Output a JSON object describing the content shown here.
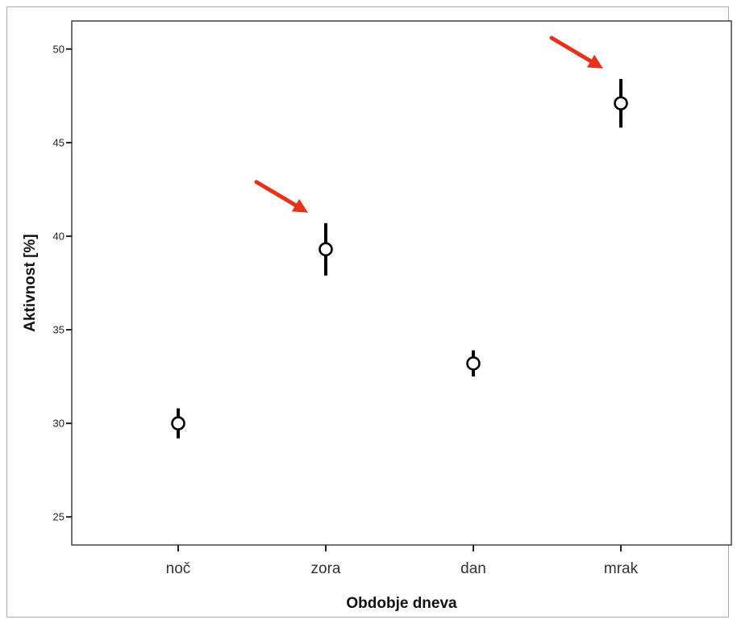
{
  "chart_data": {
    "type": "scatter",
    "title": "",
    "xlabel": "Obdobje dneva",
    "ylabel": "Aktivnost [%]",
    "categories": [
      "noč",
      "zora",
      "dan",
      "mrak"
    ],
    "yticks": [
      25,
      30,
      35,
      40,
      45,
      50
    ],
    "ylim": [
      23.5,
      51.5
    ],
    "grid": false,
    "legend": "none",
    "series": [
      {
        "values": [
          30.0,
          39.3,
          33.2,
          47.1
        ],
        "error_low": [
          29.2,
          37.9,
          32.5,
          45.8
        ],
        "error_high": [
          30.8,
          40.7,
          33.9,
          48.4
        ]
      }
    ],
    "annotations": [
      {
        "type": "arrow",
        "target": "zora",
        "color": "#e8311a"
      },
      {
        "type": "arrow",
        "target": "mrak",
        "color": "#e8311a"
      }
    ]
  }
}
